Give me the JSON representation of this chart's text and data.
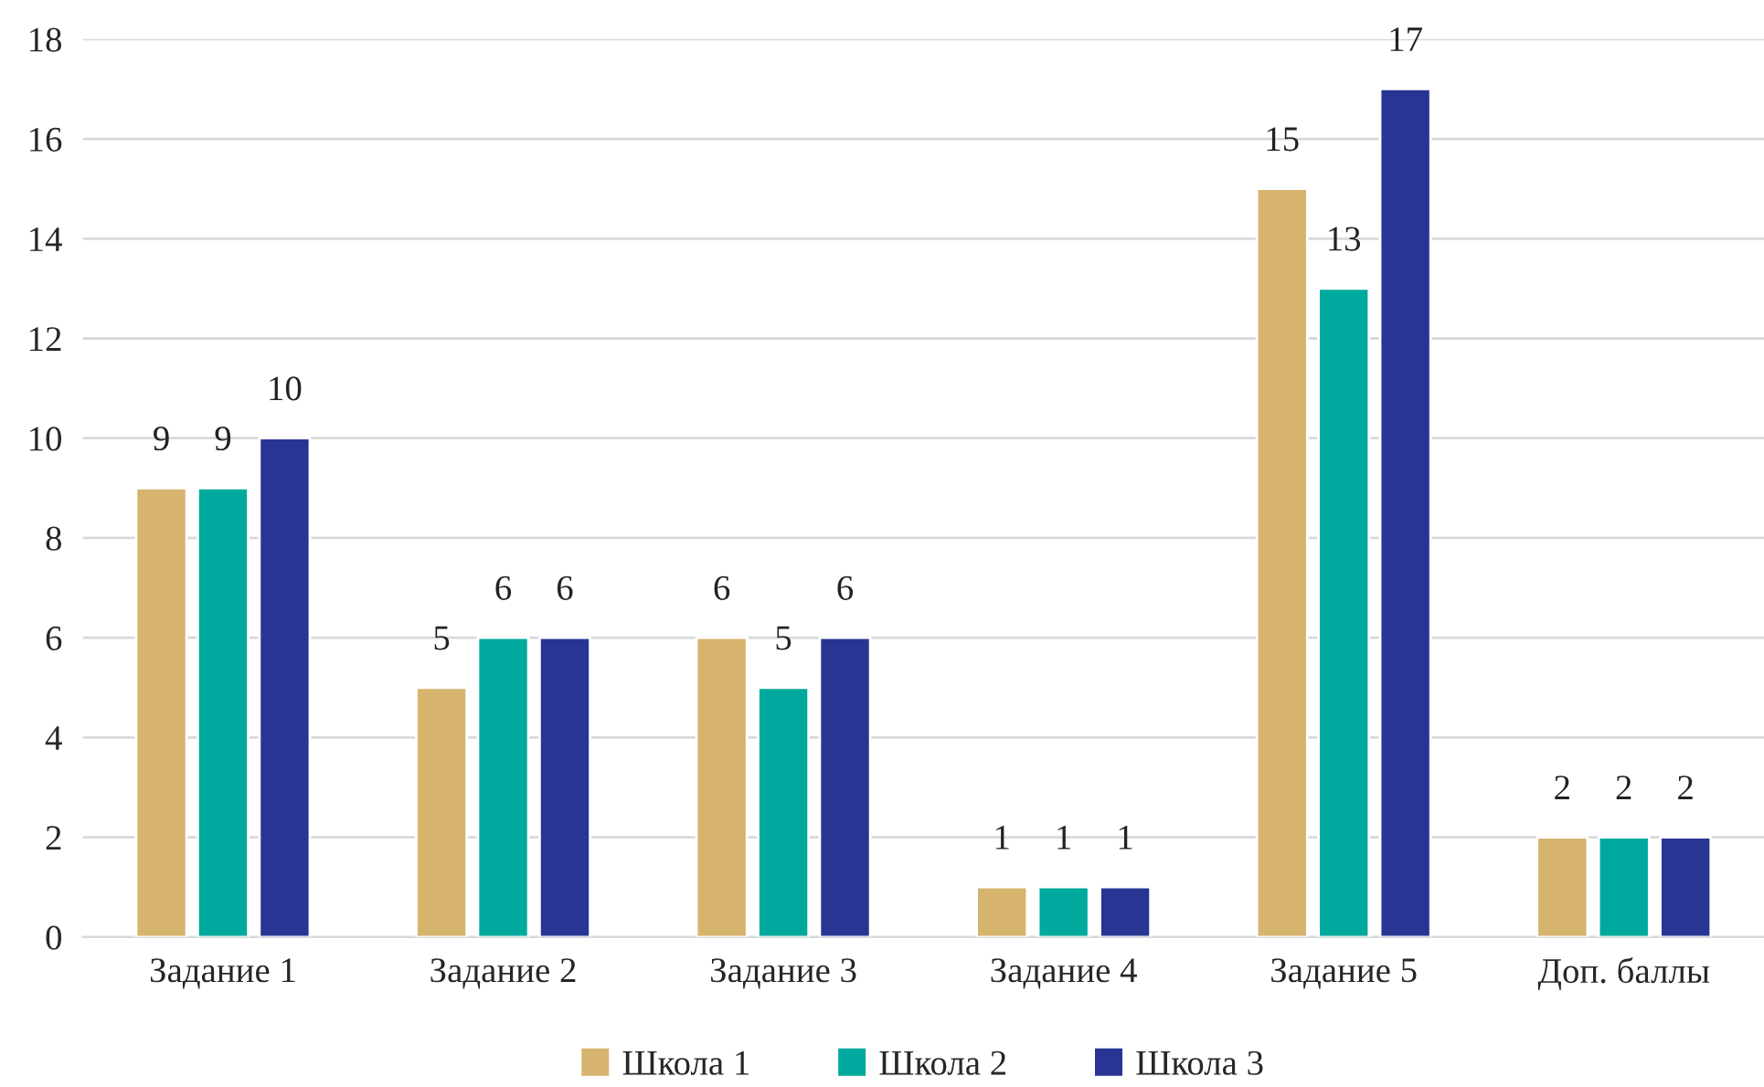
{
  "chart_data": {
    "type": "bar",
    "categories": [
      "Задание 1",
      "Задание 2",
      "Задание 3",
      "Задание 4",
      "Задание 5",
      "Доп. баллы"
    ],
    "series": [
      {
        "name": "Школа 1",
        "color": "#d6b46e",
        "values": [
          9,
          5,
          6,
          1,
          15,
          2
        ]
      },
      {
        "name": "Школа 2",
        "color": "#00a99d",
        "values": [
          9,
          6,
          5,
          1,
          13,
          2
        ]
      },
      {
        "name": "Школа 3",
        "color": "#283593",
        "values": [
          10,
          6,
          6,
          1,
          17,
          2
        ]
      }
    ],
    "ylim": [
      0,
      18
    ],
    "yticks": [
      0,
      2,
      4,
      6,
      8,
      10,
      12,
      14,
      16,
      18
    ],
    "grid": "y",
    "legend": "bottom",
    "data_labels": true
  }
}
